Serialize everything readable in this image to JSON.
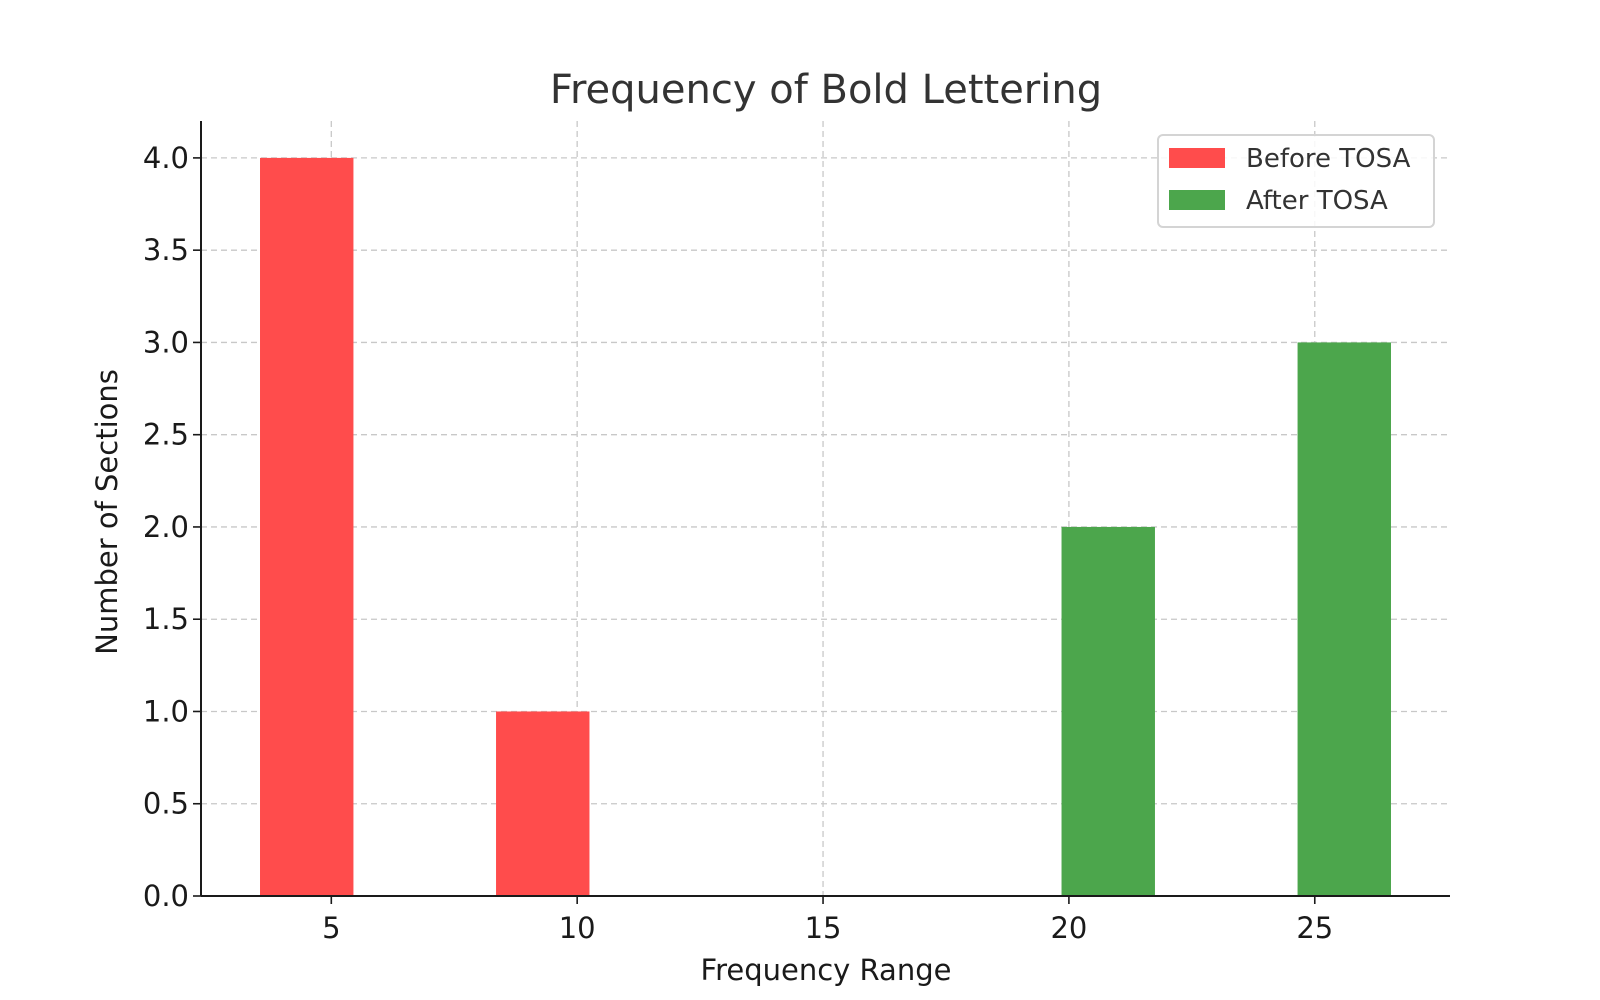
{
  "chart_data": {
    "type": "bar",
    "title": "Frequency of Bold Lettering",
    "xlabel": "Frequency Range",
    "ylabel": "Number of Sections",
    "xlim": [
      2.35,
      27.75
    ],
    "ylim": [
      0,
      4.2
    ],
    "xticks": [
      5,
      10,
      15,
      20,
      25
    ],
    "yticks": [
      0.0,
      0.5,
      1.0,
      1.5,
      2.0,
      2.5,
      3.0,
      3.5,
      4.0
    ],
    "ytick_labels": [
      "0.0",
      "0.5",
      "1.0",
      "1.5",
      "2.0",
      "2.5",
      "3.0",
      "3.5",
      "4.0"
    ],
    "grid": true,
    "legend_position": "top-right",
    "bar_width": 1.9,
    "series": [
      {
        "name": "Before TOSA",
        "color": "#ff4c4c",
        "x": [
          4.5,
          9.3
        ],
        "values": [
          4,
          1
        ]
      },
      {
        "name": "After TOSA",
        "color": "#4ca64c",
        "x": [
          20.8,
          25.6
        ],
        "values": [
          2,
          3
        ]
      }
    ]
  }
}
